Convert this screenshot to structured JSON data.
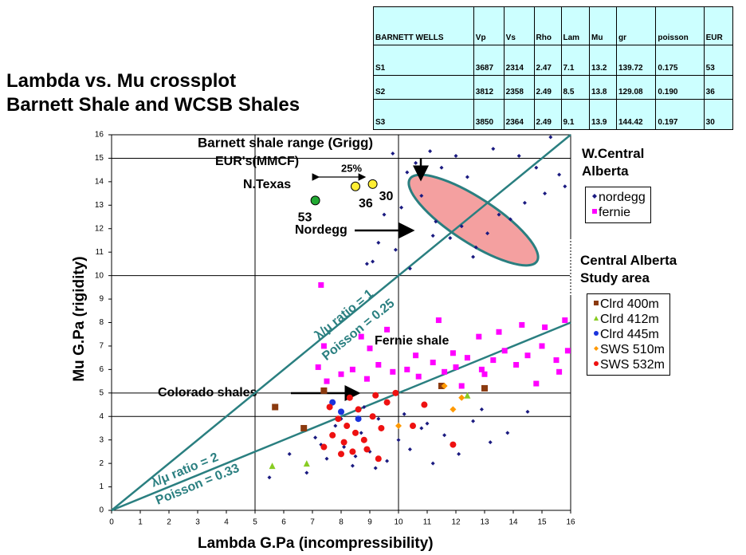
{
  "title_lines": [
    "Lambda vs. Mu crossplot",
    "Barnett Shale and WCSB Shales"
  ],
  "table": {
    "header": [
      "BARNETT WELLS",
      "Vp",
      "Vs",
      "Rho",
      "Lam",
      "Mu",
      "gr",
      "poisson",
      "EUR"
    ],
    "rows": [
      [
        "S1",
        "3687",
        "2314",
        "2.47",
        "7.1",
        "13.2",
        "139.72",
        "0.175",
        "53"
      ],
      [
        "S2",
        "3812",
        "2358",
        "2.49",
        "8.5",
        "13.8",
        "129.08",
        "0.190",
        "36"
      ],
      [
        "S3",
        "3850",
        "2364",
        "2.49",
        "9.1",
        "13.9",
        "144.42",
        "0.197",
        "30"
      ]
    ]
  },
  "chart_data": {
    "type": "scatter",
    "x_label": "Lambda G.Pa (incompressibility)",
    "y_label": "Mu G.Pa (rigidity)",
    "xlim": [
      0,
      16
    ],
    "ylim": [
      0,
      16
    ],
    "xticks": [
      0,
      1,
      2,
      3,
      4,
      5,
      6,
      7,
      8,
      9,
      10,
      11,
      12,
      13,
      14,
      15,
      16
    ],
    "yticks": [
      0,
      1,
      2,
      3,
      4,
      5,
      6,
      7,
      8,
      9,
      10,
      11,
      12,
      13,
      14,
      15,
      16
    ],
    "grid_x": [
      5,
      10
    ],
    "grid_y": [
      4,
      5,
      10,
      15
    ],
    "reference_lines": [
      {
        "label": "λ/μ ratio = 1",
        "poisson_label": "Poisson = 0.25",
        "ratio": 1,
        "color": "#2a7f80"
      },
      {
        "label": "λ/μ ratio = 2",
        "poisson_label": "Poisson = 0.33",
        "ratio": 2,
        "color": "#2a7f80"
      }
    ],
    "annotations": {
      "barnett_range": "Barnett shale range (Grigg)",
      "eur_units": "EUR's(MMCF)",
      "region": "N.Texas",
      "spread": "25%",
      "nordegg": "Nordegg",
      "fernie": "Fernie shale",
      "colorado": "Colorado shales"
    },
    "barnett_wells": {
      "x": [
        7.1,
        8.5,
        9.1
      ],
      "y": [
        13.2,
        13.8,
        13.9
      ],
      "eur": [
        53,
        36,
        30
      ],
      "colors": [
        "#22aa33",
        "#ffee33",
        "#ffee33"
      ]
    },
    "legend_groups": [
      "W.Central Alberta",
      "Central Alberta Study area"
    ],
    "series": [
      {
        "name": "nordegg",
        "group": 0,
        "marker": "diamond",
        "color": "#1a1a80",
        "x": [
          9.8,
          10.3,
          10.6,
          11.1,
          11.5,
          12,
          12.4,
          13.3,
          14.2,
          14.8,
          15.3,
          15.6,
          15.8,
          9.5,
          10.1,
          10.8,
          11.3,
          11.8,
          12.2,
          12.7,
          13.1,
          13.5,
          9.3,
          9.9,
          10.4,
          9.1,
          8.9,
          11.2,
          14.4,
          15.1,
          12.6,
          13.9,
          6.2,
          7.1,
          7.5,
          7.8,
          8.1,
          8.4,
          8.7,
          9.0,
          9.3,
          9.6,
          10.0,
          10.4,
          10.8,
          11.2,
          11.6,
          12.1,
          12.6,
          13.2,
          13.8,
          14.5,
          6.8,
          7.3,
          8.0,
          8.5,
          9.2,
          10.2,
          11.0,
          12.9,
          5.5,
          8.8
        ],
        "y": [
          15.2,
          14.4,
          14.8,
          15.3,
          14.6,
          15.1,
          14.2,
          15.4,
          15.1,
          14.6,
          15.9,
          14.3,
          13.8,
          12.6,
          12.9,
          13.4,
          12.3,
          11.6,
          12.1,
          11.2,
          11.8,
          12.6,
          11.4,
          11.1,
          10.3,
          10.6,
          10.5,
          11.7,
          13.1,
          13.5,
          10.8,
          12.4,
          2.4,
          3.1,
          2.2,
          3.6,
          2.7,
          1.9,
          3.3,
          2.5,
          3.9,
          2.1,
          3.0,
          2.6,
          3.5,
          2.0,
          3.2,
          2.4,
          3.8,
          2.9,
          3.3,
          4.2,
          1.6,
          2.8,
          3.9,
          2.3,
          1.8,
          4.1,
          3.7,
          4.3,
          1.4,
          4.4
        ]
      },
      {
        "name": "fernie",
        "group": 0,
        "marker": "square",
        "color": "#ff00ff",
        "x": [
          7.4,
          7.2,
          7.5,
          8.0,
          8.4,
          8.9,
          9.3,
          9.8,
          10.3,
          10.7,
          11.2,
          11.6,
          12.0,
          12.4,
          12.9,
          13.3,
          13.7,
          14.1,
          14.5,
          15.0,
          15.5,
          15.9,
          7.3,
          8.7,
          9.6,
          11.4,
          12.8,
          13.5,
          14.3,
          15.1,
          15.8,
          10.6,
          11.9,
          12.2,
          14.8,
          9.0,
          13.0,
          15.6
        ],
        "y": [
          7.0,
          6.1,
          5.5,
          5.8,
          6.0,
          5.6,
          6.2,
          5.9,
          6.0,
          5.7,
          6.3,
          5.9,
          6.1,
          6.5,
          6.0,
          6.4,
          6.8,
          6.2,
          6.6,
          7.0,
          6.4,
          6.8,
          9.6,
          7.4,
          7.7,
          8.1,
          7.4,
          7.6,
          7.9,
          7.8,
          8.1,
          6.6,
          6.7,
          5.3,
          5.4,
          6.9,
          5.8,
          5.9
        ]
      },
      {
        "name": "Clrd 400m",
        "group": 1,
        "marker": "square",
        "color": "#8b3a0f",
        "x": [
          5.7,
          7.4,
          11.5,
          13.0,
          6.7
        ],
        "y": [
          4.4,
          5.1,
          5.3,
          5.2,
          3.5
        ]
      },
      {
        "name": "Clrd 412m",
        "group": 1,
        "marker": "triangle",
        "color": "#88cc22",
        "x": [
          5.6,
          6.8,
          12.4
        ],
        "y": [
          1.9,
          2.0,
          4.9
        ]
      },
      {
        "name": "Clrd 445m",
        "group": 1,
        "marker": "circle",
        "color": "#1a33dd",
        "x": [
          7.7,
          8.0,
          8.6
        ],
        "y": [
          4.6,
          4.2,
          3.9
        ]
      },
      {
        "name": "SWS 510m",
        "group": 1,
        "marker": "diamond",
        "color": "#ff9900",
        "x": [
          11.6,
          12.2,
          11.9,
          10.0
        ],
        "y": [
          5.3,
          4.8,
          4.3,
          3.6
        ]
      },
      {
        "name": "SWS 532m",
        "group": 1,
        "marker": "circle",
        "color": "#ee1111",
        "x": [
          7.6,
          7.9,
          8.2,
          8.5,
          8.8,
          9.1,
          9.4,
          7.7,
          8.1,
          8.4,
          8.9,
          9.6,
          9.9,
          9.2,
          8.6,
          7.4,
          8.0,
          9.3,
          10.5,
          11.9,
          8.3,
          10.9
        ],
        "y": [
          4.4,
          3.9,
          3.6,
          3.3,
          3.0,
          4.0,
          3.5,
          3.2,
          2.9,
          2.5,
          2.6,
          4.6,
          5.0,
          4.9,
          4.3,
          2.7,
          2.4,
          2.2,
          3.6,
          2.8,
          4.8,
          4.5
        ]
      }
    ]
  }
}
